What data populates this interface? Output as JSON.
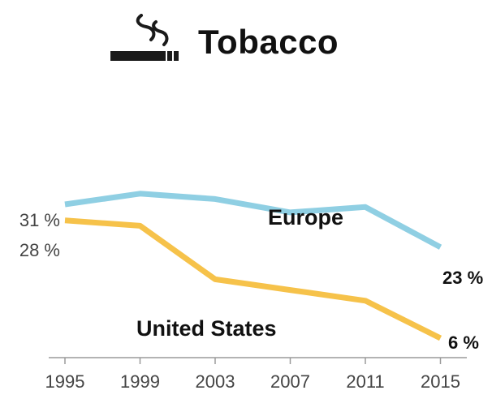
{
  "title": "Tobacco",
  "icon": "smoking-icon",
  "chart_data": {
    "type": "line",
    "title": "Tobacco",
    "x": [
      "1995",
      "1999",
      "2003",
      "2007",
      "2011",
      "2015"
    ],
    "ylim": [
      0,
      40
    ],
    "grid": false,
    "legend": "inline labels",
    "series": [
      {
        "name": "Europe",
        "color": "#8fcfe3",
        "values": [
          31,
          33,
          32,
          29.5,
          30.5,
          23
        ],
        "start_label": "31 %",
        "end_label": "23 %"
      },
      {
        "name": "United States",
        "color": "#f6c24a",
        "values": [
          28,
          27,
          17,
          15,
          13,
          6
        ],
        "start_label": "28 %",
        "end_label": "6 %"
      }
    ]
  }
}
